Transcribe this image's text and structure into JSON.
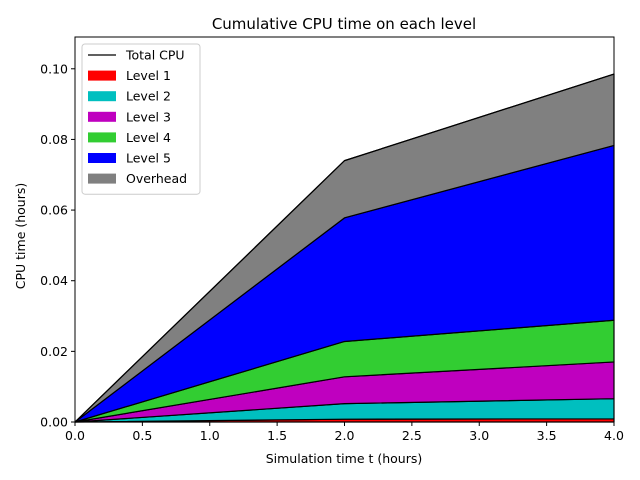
{
  "chart_data": {
    "type": "area",
    "title": "Cumulative CPU time on each level",
    "xlabel": "Simulation time t (hours)",
    "ylabel": "CPU time (hours)",
    "x": [
      0.0,
      2.0,
      4.0
    ],
    "xlim": [
      0.0,
      4.0
    ],
    "ylim": [
      0.0,
      0.109
    ],
    "xticks": [
      "0.0",
      "0.5",
      "1.0",
      "1.5",
      "2.0",
      "2.5",
      "3.0",
      "3.5",
      "4.0"
    ],
    "yticks": [
      "0.00",
      "0.02",
      "0.04",
      "0.06",
      "0.08",
      "0.10"
    ],
    "grid": false,
    "legend_position": "top-left",
    "stacked": true,
    "series": [
      {
        "name": "Level 1",
        "color": "#ff0000",
        "values": [
          0.0,
          0.0008,
          0.0009
        ]
      },
      {
        "name": "Level 2",
        "color": "#00bfbf",
        "values": [
          0.0,
          0.0044,
          0.0057
        ]
      },
      {
        "name": "Level 3",
        "color": "#bf00bf",
        "values": [
          0.0,
          0.0076,
          0.0104
        ]
      },
      {
        "name": "Level 4",
        "color": "#32cd32",
        "values": [
          0.0,
          0.01,
          0.0118
        ]
      },
      {
        "name": "Level 5",
        "color": "#0000ff",
        "values": [
          0.0,
          0.035,
          0.0495
        ]
      },
      {
        "name": "Overhead",
        "color": "#808080",
        "values": [
          0.0,
          0.0162,
          0.0202
        ]
      }
    ],
    "total": {
      "name": "Total CPU",
      "color": "#000000",
      "values": [
        0.0,
        0.074,
        0.0985
      ]
    }
  }
}
